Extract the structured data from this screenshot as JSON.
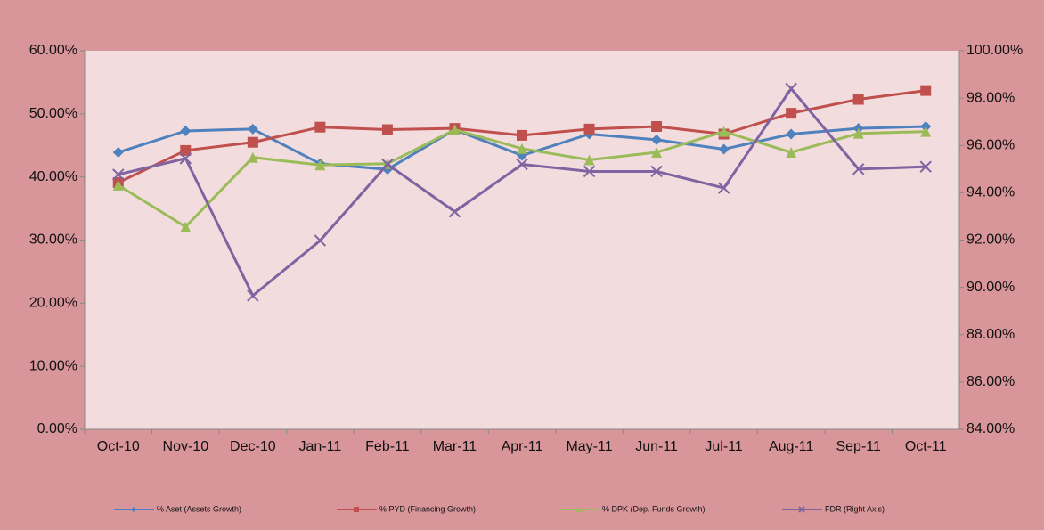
{
  "chart_data": {
    "type": "line",
    "categories": [
      "Oct-10",
      "Nov-10",
      "Dec-10",
      "Jan-11",
      "Feb-11",
      "Mar-11",
      "Apr-11",
      "May-11",
      "Jun-11",
      "Jul-11",
      "Aug-11",
      "Sep-11",
      "Oct-11"
    ],
    "series": [
      {
        "name": "% Aset (Assets Growth)",
        "color": "#4f81bd",
        "marker": "diamond",
        "values": [
          43.9,
          47.3,
          47.6,
          42.1,
          41.2,
          47.5,
          43.4,
          46.8,
          45.9,
          44.4,
          46.8,
          47.7,
          48.0
        ]
      },
      {
        "name": "% PYD (Financing Growth)",
        "color": "#c0504d",
        "marker": "square",
        "values": [
          39.1,
          44.2,
          45.5,
          47.9,
          47.5,
          47.7,
          46.6,
          47.6,
          48.0,
          46.8,
          50.1,
          52.3,
          53.7
        ]
      },
      {
        "name": "% DPK (Dep. Funds Growth)",
        "color": "#9bbb59",
        "marker": "triangle",
        "values": [
          38.7,
          32.1,
          43.1,
          41.9,
          42.1,
          47.5,
          44.5,
          42.7,
          43.9,
          47.2,
          43.9,
          46.9,
          47.2
        ]
      },
      {
        "name": "FDR (Right Axis)",
        "color": "#8064a2",
        "marker": "x",
        "axis": "y2",
        "values": [
          94.77,
          95.45,
          89.65,
          91.98,
          95.2,
          93.2,
          95.2,
          94.9,
          94.9,
          94.2,
          98.4,
          95.0,
          95.1
        ]
      }
    ],
    "ylim": [
      0,
      60
    ],
    "yticks": [
      {
        "value": 0,
        "label": "0.00%"
      },
      {
        "value": 10,
        "label": "10.00%"
      },
      {
        "value": 20,
        "label": "20.00%"
      },
      {
        "value": 30,
        "label": "30.00%"
      },
      {
        "value": 40,
        "label": "40.00%"
      },
      {
        "value": 50,
        "label": "50.00%"
      },
      {
        "value": 60,
        "label": "60.00%"
      }
    ],
    "y2lim": [
      84,
      100
    ],
    "y2ticks": [
      {
        "value": 84,
        "label": "84.00%"
      },
      {
        "value": 86,
        "label": "86.00%"
      },
      {
        "value": 88,
        "label": "88.00%"
      },
      {
        "value": 90,
        "label": "90.00%"
      },
      {
        "value": 92,
        "label": "92.00%"
      },
      {
        "value": 94,
        "label": "94.00%"
      },
      {
        "value": 96,
        "label": "96.00%"
      },
      {
        "value": 98,
        "label": "98.00%"
      },
      {
        "value": 100,
        "label": "100.00%"
      }
    ],
    "legend": "bottom"
  }
}
